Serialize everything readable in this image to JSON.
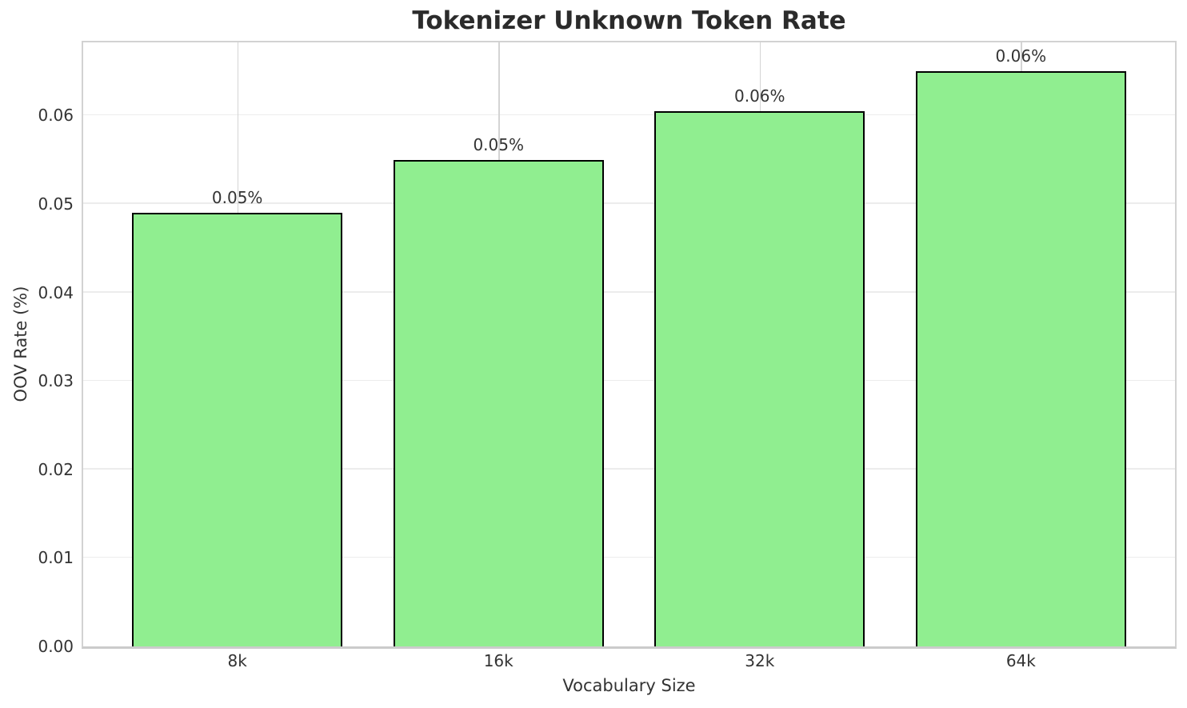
{
  "figure": {
    "title": "Tokenizer Unknown Token Rate"
  },
  "chart_data": {
    "type": "bar",
    "title": "Tokenizer Unknown Token Rate",
    "xlabel": "Vocabulary Size",
    "ylabel": "OOV Rate (%)",
    "categories": [
      "8k",
      "16k",
      "32k",
      "64k"
    ],
    "values": [
      0.049,
      0.055,
      0.0605,
      0.065
    ],
    "bar_labels": [
      "0.05%",
      "0.05%",
      "0.06%",
      "0.06%"
    ],
    "yticks": [
      {
        "value": 0.0,
        "label": "0.00"
      },
      {
        "value": 0.01,
        "label": "0.01"
      },
      {
        "value": 0.02,
        "label": "0.02"
      },
      {
        "value": 0.03,
        "label": "0.03"
      },
      {
        "value": 0.04,
        "label": "0.04"
      },
      {
        "value": 0.05,
        "label": "0.05"
      },
      {
        "value": 0.06,
        "label": "0.06"
      }
    ],
    "ylim": [
      0,
      0.06825
    ],
    "xlim": [
      -0.59,
      3.59
    ],
    "bar_width_units": 0.805,
    "grid": {
      "horizontal": true,
      "vertical": true
    },
    "legend": "none",
    "colors": {
      "bar_fill": "#90EE90",
      "bar_edge": "#000000",
      "grid_horizontal": "#ececec",
      "grid_vertical": "#d4d4d4",
      "spine": "#d2d2d2",
      "tick_text": "#333333",
      "title_text": "#2b2b2b",
      "background": "#ffffff"
    }
  }
}
